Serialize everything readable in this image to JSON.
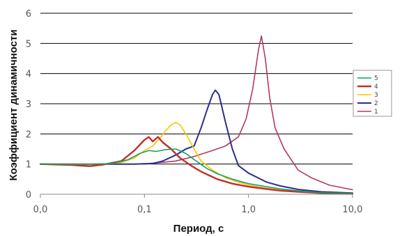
{
  "chart_data": {
    "type": "line",
    "title": "",
    "xlabel": "Период, с",
    "ylabel": "Коэффициент динамичности",
    "x_scale": "log",
    "xlim": [
      0.01,
      10.0
    ],
    "ylim": [
      0,
      6
    ],
    "x_ticks": [
      {
        "value": 0.01,
        "label": "0,0"
      },
      {
        "value": 0.1,
        "label": "0,1"
      },
      {
        "value": 1.0,
        "label": "1,0"
      },
      {
        "value": 10.0,
        "label": "10,0"
      }
    ],
    "y_ticks": [
      0,
      1,
      2,
      3,
      4,
      5,
      6
    ],
    "grid": "horizontal",
    "legend_position": "right",
    "series": [
      {
        "name": "5",
        "color": "#1a9e6a",
        "width": 1.6,
        "points": [
          [
            0.01,
            1.0
          ],
          [
            0.03,
            0.99
          ],
          [
            0.05,
            1.02
          ],
          [
            0.07,
            1.15
          ],
          [
            0.09,
            1.35
          ],
          [
            0.11,
            1.45
          ],
          [
            0.13,
            1.42
          ],
          [
            0.16,
            1.48
          ],
          [
            0.2,
            1.5
          ],
          [
            0.25,
            1.35
          ],
          [
            0.3,
            1.15
          ],
          [
            0.4,
            0.85
          ],
          [
            0.5,
            0.68
          ],
          [
            0.7,
            0.5
          ],
          [
            1.0,
            0.35
          ],
          [
            1.5,
            0.25
          ],
          [
            2.0,
            0.18
          ],
          [
            3.0,
            0.11
          ],
          [
            5.0,
            0.05
          ],
          [
            10.0,
            0.03
          ]
        ]
      },
      {
        "name": "4",
        "color": "#c0302a",
        "width": 2.4,
        "points": [
          [
            0.01,
            1.0
          ],
          [
            0.02,
            0.97
          ],
          [
            0.03,
            0.93
          ],
          [
            0.04,
            0.98
          ],
          [
            0.06,
            1.1
          ],
          [
            0.08,
            1.45
          ],
          [
            0.1,
            1.8
          ],
          [
            0.11,
            1.9
          ],
          [
            0.12,
            1.75
          ],
          [
            0.135,
            1.9
          ],
          [
            0.15,
            1.72
          ],
          [
            0.18,
            1.5
          ],
          [
            0.22,
            1.2
          ],
          [
            0.28,
            0.95
          ],
          [
            0.35,
            0.75
          ],
          [
            0.5,
            0.5
          ],
          [
            0.7,
            0.35
          ],
          [
            1.0,
            0.25
          ],
          [
            1.5,
            0.17
          ],
          [
            2.0,
            0.12
          ],
          [
            3.0,
            0.08
          ],
          [
            5.0,
            0.04
          ],
          [
            10.0,
            0.02
          ]
        ]
      },
      {
        "name": "3",
        "color": "#f5c400",
        "width": 1.6,
        "points": [
          [
            0.01,
            1.0
          ],
          [
            0.04,
            1.0
          ],
          [
            0.06,
            1.05
          ],
          [
            0.08,
            1.2
          ],
          [
            0.1,
            1.45
          ],
          [
            0.12,
            1.6
          ],
          [
            0.14,
            1.85
          ],
          [
            0.16,
            2.1
          ],
          [
            0.18,
            2.3
          ],
          [
            0.2,
            2.38
          ],
          [
            0.22,
            2.3
          ],
          [
            0.25,
            2.0
          ],
          [
            0.3,
            1.5
          ],
          [
            0.35,
            1.1
          ],
          [
            0.45,
            0.8
          ],
          [
            0.6,
            0.55
          ],
          [
            0.8,
            0.4
          ],
          [
            1.0,
            0.3
          ],
          [
            1.5,
            0.2
          ],
          [
            2.0,
            0.14
          ],
          [
            3.0,
            0.08
          ],
          [
            5.0,
            0.04
          ],
          [
            10.0,
            0.02
          ]
        ]
      },
      {
        "name": "2",
        "color": "#2b2f8a",
        "width": 2.0,
        "points": [
          [
            0.01,
            1.0
          ],
          [
            0.04,
            1.0
          ],
          [
            0.08,
            1.0
          ],
          [
            0.12,
            1.02
          ],
          [
            0.15,
            1.1
          ],
          [
            0.2,
            1.3
          ],
          [
            0.25,
            1.5
          ],
          [
            0.3,
            1.6
          ],
          [
            0.35,
            2.2
          ],
          [
            0.4,
            2.8
          ],
          [
            0.45,
            3.3
          ],
          [
            0.48,
            3.45
          ],
          [
            0.52,
            3.3
          ],
          [
            0.6,
            2.4
          ],
          [
            0.7,
            1.5
          ],
          [
            0.8,
            0.95
          ],
          [
            1.0,
            0.7
          ],
          [
            1.5,
            0.4
          ],
          [
            2.0,
            0.28
          ],
          [
            3.0,
            0.16
          ],
          [
            5.0,
            0.08
          ],
          [
            10.0,
            0.04
          ]
        ]
      },
      {
        "name": "1",
        "color": "#b33a5e",
        "width": 1.6,
        "points": [
          [
            0.01,
            1.0
          ],
          [
            0.05,
            1.0
          ],
          [
            0.1,
            1.0
          ],
          [
            0.2,
            1.1
          ],
          [
            0.3,
            1.25
          ],
          [
            0.45,
            1.45
          ],
          [
            0.6,
            1.6
          ],
          [
            0.8,
            1.9
          ],
          [
            0.95,
            2.5
          ],
          [
            1.1,
            3.5
          ],
          [
            1.25,
            4.8
          ],
          [
            1.33,
            5.25
          ],
          [
            1.45,
            4.5
          ],
          [
            1.6,
            3.2
          ],
          [
            1.8,
            2.2
          ],
          [
            2.2,
            1.5
          ],
          [
            3.0,
            0.8
          ],
          [
            4.0,
            0.55
          ],
          [
            6.0,
            0.3
          ],
          [
            10.0,
            0.15
          ]
        ]
      }
    ]
  }
}
